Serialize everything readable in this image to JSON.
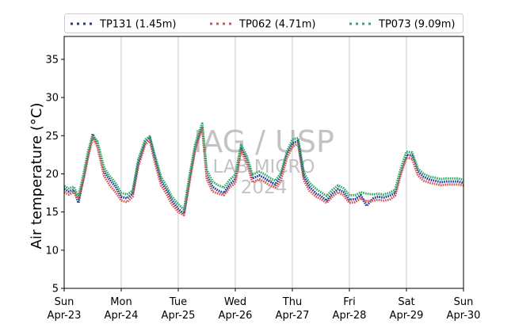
{
  "chart_data": {
    "type": "line",
    "ylabel": "Air temperature (°C)",
    "xlabel": "",
    "ylim": [
      5,
      38
    ],
    "yticks": [
      5,
      10,
      15,
      20,
      25,
      30,
      35
    ],
    "xlim": [
      0,
      7
    ],
    "x_unit": "days since Sun Apr-23 00:00",
    "xticks": [
      {
        "day": "Sun",
        "date": "Apr-23"
      },
      {
        "day": "Mon",
        "date": "Apr-24"
      },
      {
        "day": "Tue",
        "date": "Apr-25"
      },
      {
        "day": "Wed",
        "date": "Apr-26"
      },
      {
        "day": "Thu",
        "date": "Apr-27"
      },
      {
        "day": "Fri",
        "date": "Apr-28"
      },
      {
        "day": "Sat",
        "date": "Apr-29"
      },
      {
        "day": "Sun",
        "date": "Apr-30"
      }
    ],
    "grid": "vertical",
    "legend_position": "top",
    "watermark": [
      "IAG / USP",
      "LAB MICRO",
      "2024"
    ],
    "series": [
      {
        "name": "TP131 (1.45m)",
        "color": "#1f3a93",
        "x": [
          0,
          0.08,
          0.17,
          0.25,
          0.35,
          0.42,
          0.5,
          0.58,
          0.7,
          0.8,
          0.9,
          1.0,
          1.1,
          1.2,
          1.3,
          1.42,
          1.5,
          1.58,
          1.7,
          1.8,
          1.88,
          2.0,
          2.1,
          2.2,
          2.3,
          2.42,
          2.5,
          2.6,
          2.7,
          2.8,
          2.9,
          3.0,
          3.1,
          3.2,
          3.3,
          3.42,
          3.5,
          3.6,
          3.7,
          3.8,
          3.9,
          4.0,
          4.1,
          4.2,
          4.3,
          4.42,
          4.5,
          4.6,
          4.7,
          4.8,
          4.9,
          5.0,
          5.1,
          5.2,
          5.3,
          5.42,
          5.5,
          5.6,
          5.7,
          5.8,
          5.9,
          6.0,
          6.1,
          6.2,
          6.3,
          6.42,
          6.5,
          6.6,
          6.7,
          6.8,
          6.9,
          7.0
        ],
        "y": [
          18.0,
          17.7,
          17.9,
          16.2,
          20.0,
          22.6,
          25.2,
          24.0,
          20.3,
          19.2,
          18.3,
          17.0,
          16.8,
          17.4,
          21.5,
          24.2,
          24.8,
          22.3,
          19.0,
          17.8,
          16.6,
          15.4,
          14.8,
          19.5,
          23.7,
          26.2,
          19.8,
          18.3,
          17.8,
          17.5,
          18.6,
          19.3,
          23.4,
          22.0,
          19.4,
          19.8,
          19.5,
          19.0,
          18.6,
          19.7,
          22.4,
          24.0,
          24.3,
          19.7,
          18.3,
          17.4,
          17.1,
          16.5,
          17.4,
          18.0,
          17.6,
          16.6,
          16.7,
          17.2,
          15.8,
          16.8,
          17.0,
          16.9,
          17.1,
          17.5,
          20.3,
          22.5,
          22.4,
          20.3,
          19.6,
          19.2,
          19.1,
          18.9,
          19.0,
          19.0,
          19.0,
          18.8
        ]
      },
      {
        "name": "TP062 (4.71m)",
        "color": "#d9534f",
        "x": [
          0,
          0.08,
          0.17,
          0.25,
          0.35,
          0.42,
          0.5,
          0.58,
          0.7,
          0.8,
          0.9,
          1.0,
          1.1,
          1.2,
          1.3,
          1.42,
          1.5,
          1.58,
          1.7,
          1.8,
          1.88,
          2.0,
          2.1,
          2.2,
          2.3,
          2.42,
          2.5,
          2.6,
          2.7,
          2.8,
          2.9,
          3.0,
          3.1,
          3.2,
          3.3,
          3.42,
          3.5,
          3.6,
          3.7,
          3.8,
          3.9,
          4.0,
          4.1,
          4.2,
          4.3,
          4.42,
          4.5,
          4.6,
          4.7,
          4.8,
          4.9,
          5.0,
          5.1,
          5.2,
          5.3,
          5.42,
          5.5,
          5.6,
          5.7,
          5.8,
          5.9,
          6.0,
          6.1,
          6.2,
          6.3,
          6.42,
          6.5,
          6.6,
          6.7,
          6.8,
          6.9,
          7.0
        ],
        "y": [
          17.6,
          17.3,
          17.6,
          16.6,
          19.6,
          22.2,
          24.7,
          23.6,
          19.7,
          18.5,
          17.6,
          16.5,
          16.3,
          17.0,
          21.0,
          23.8,
          24.4,
          21.8,
          18.5,
          17.3,
          16.1,
          15.0,
          14.6,
          19.0,
          23.3,
          26.0,
          19.3,
          17.7,
          17.4,
          17.2,
          18.2,
          18.8,
          23.0,
          21.5,
          18.9,
          19.3,
          19.0,
          18.5,
          18.2,
          19.2,
          22.0,
          23.6,
          23.9,
          19.2,
          17.8,
          17.0,
          16.7,
          16.2,
          17.0,
          17.6,
          17.2,
          16.2,
          16.3,
          16.8,
          16.4,
          16.5,
          16.6,
          16.5,
          16.6,
          17.1,
          19.9,
          22.1,
          22.0,
          19.8,
          19.1,
          18.8,
          18.7,
          18.5,
          18.6,
          18.6,
          18.6,
          18.5
        ]
      },
      {
        "name": "TP073 (9.09m)",
        "color": "#2eab64",
        "x": [
          0,
          0.08,
          0.17,
          0.25,
          0.35,
          0.42,
          0.5,
          0.58,
          0.7,
          0.8,
          0.9,
          1.0,
          1.1,
          1.2,
          1.3,
          1.42,
          1.5,
          1.58,
          1.7,
          1.8,
          1.88,
          2.0,
          2.1,
          2.2,
          2.3,
          2.42,
          2.5,
          2.6,
          2.7,
          2.8,
          2.9,
          3.0,
          3.1,
          3.2,
          3.3,
          3.42,
          3.5,
          3.6,
          3.7,
          3.8,
          3.9,
          4.0,
          4.1,
          4.2,
          4.3,
          4.42,
          4.5,
          4.6,
          4.7,
          4.8,
          4.9,
          5.0,
          5.1,
          5.2,
          5.3,
          5.42,
          5.5,
          5.6,
          5.7,
          5.8,
          5.9,
          6.0,
          6.1,
          6.2,
          6.3,
          6.42,
          6.5,
          6.6,
          6.7,
          6.8,
          6.9,
          7.0
        ],
        "y": [
          18.4,
          18.1,
          18.3,
          17.0,
          20.4,
          23.0,
          25.0,
          24.3,
          20.8,
          19.7,
          18.8,
          17.5,
          17.3,
          17.8,
          21.9,
          24.5,
          24.9,
          22.7,
          19.6,
          18.3,
          17.1,
          16.0,
          15.3,
          19.9,
          24.0,
          26.6,
          20.5,
          19.0,
          18.5,
          18.2,
          19.2,
          19.9,
          23.8,
          22.4,
          19.9,
          20.3,
          20.0,
          19.5,
          19.1,
          20.1,
          22.8,
          24.5,
          24.7,
          20.2,
          18.8,
          18.0,
          17.6,
          17.1,
          17.9,
          18.5,
          18.1,
          17.2,
          17.2,
          17.6,
          17.4,
          17.3,
          17.4,
          17.3,
          17.5,
          17.9,
          20.7,
          22.9,
          22.8,
          20.7,
          20.0,
          19.6,
          19.5,
          19.3,
          19.4,
          19.4,
          19.4,
          19.2
        ]
      }
    ]
  }
}
